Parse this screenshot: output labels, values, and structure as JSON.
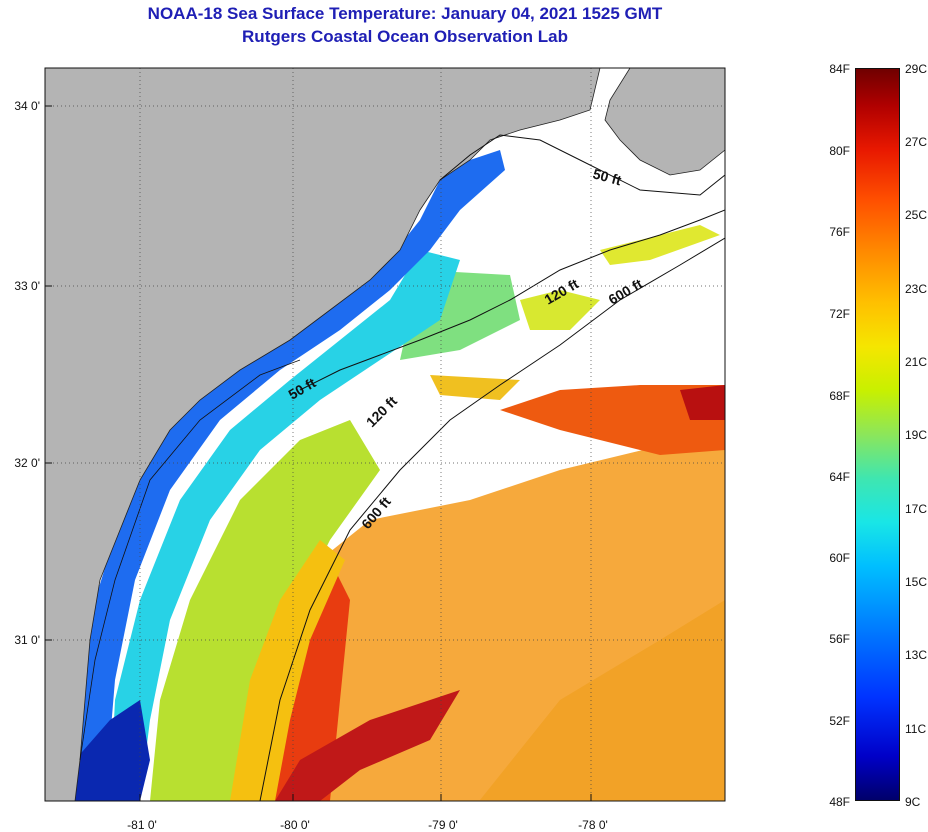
{
  "title": {
    "line1": "NOAA-18 Sea Surface Temperature:  January 04, 2021 1525 GMT",
    "line2": "Rutgers Coastal Ocean Observation Lab"
  },
  "map": {
    "latitude_labels": [
      "34 0'",
      "33 0'",
      "32 0'",
      "31 0'"
    ],
    "longitude_labels": [
      "-81 0'",
      "-80 0'",
      "-79 0'",
      "-78 0'"
    ],
    "isobath_labels": [
      "50 ft",
      "120 ft",
      "600 ft",
      "50 ft",
      "120 ft",
      "600 ft"
    ],
    "land_color": "#b4b4b4",
    "no_data_color": "#ffffff"
  },
  "colorbar": {
    "fahrenheit": [
      "84F",
      "80F",
      "76F",
      "72F",
      "68F",
      "64F",
      "60F",
      "56F",
      "52F",
      "48F"
    ],
    "celsius": [
      "29C",
      "27C",
      "25C",
      "23C",
      "21C",
      "19C",
      "17C",
      "15C",
      "13C",
      "11C",
      "9C"
    ],
    "range_celsius": [
      9,
      29
    ],
    "colors": [
      "#00006a",
      "#0033ff",
      "#00bfff",
      "#8ce65a",
      "#f5e600",
      "#ff8a00",
      "#e81800",
      "#700000"
    ]
  }
}
